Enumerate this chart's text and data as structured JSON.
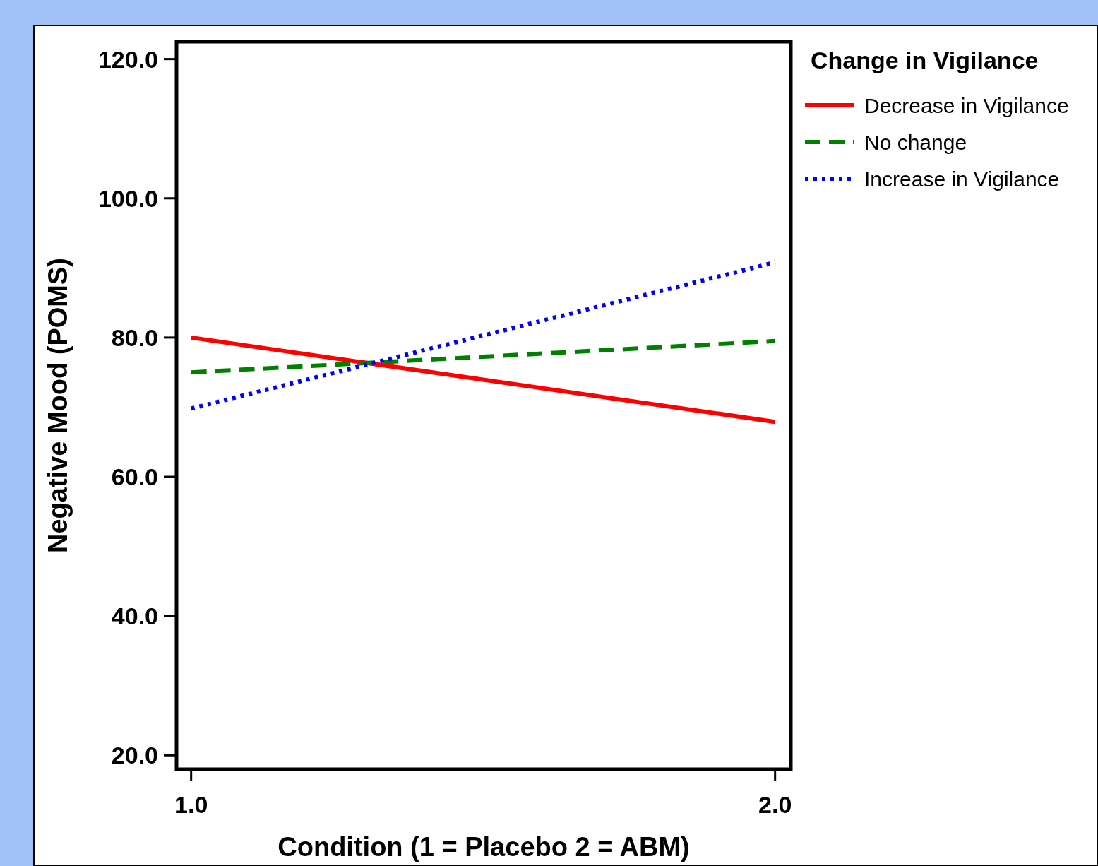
{
  "chart_data": {
    "type": "line",
    "xlabel": "Condition (1 = Placebo 2 = ABM)",
    "ylabel": "Negative Mood (POMS)",
    "legend_title": "Change in Vigilance",
    "legend": "top right",
    "grid": false,
    "x": [
      1,
      2
    ],
    "xlim": [
      0.975,
      2.027
    ],
    "xticks": [
      {
        "value": 1,
        "label": "1.0"
      },
      {
        "value": 2,
        "label": "2.0"
      }
    ],
    "ylim": [
      18,
      122.5
    ],
    "yticks": [
      {
        "value": 20,
        "label": "20.0"
      },
      {
        "value": 40,
        "label": "40.0"
      },
      {
        "value": 60,
        "label": "60.0"
      },
      {
        "value": 80,
        "label": "80.0"
      },
      {
        "value": 100,
        "label": "100.0"
      },
      {
        "value": 120,
        "label": "120.0"
      }
    ],
    "series": [
      {
        "name": "Decrease in Vigilance",
        "color": "#ff0000",
        "line_style": "solid",
        "values": [
          80.0,
          67.9
        ]
      },
      {
        "name": "No change",
        "color": "#008000",
        "line_style": "dashed",
        "values": [
          75.0,
          79.5
        ]
      },
      {
        "name": "Increase in Vigilance",
        "color": "#0000ff",
        "line_style": "dotted",
        "values": [
          69.8,
          90.8
        ]
      }
    ]
  }
}
